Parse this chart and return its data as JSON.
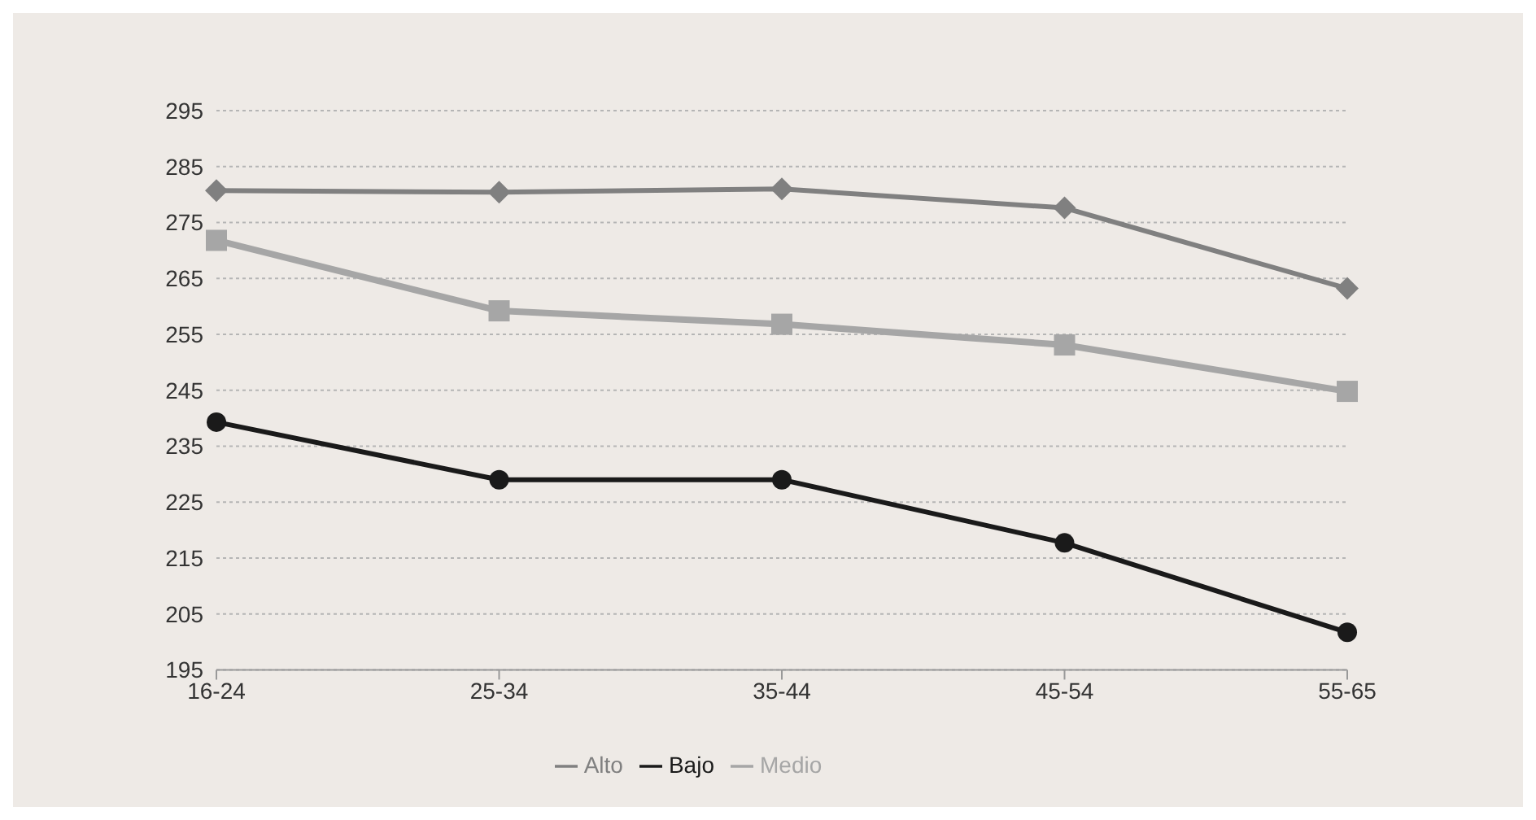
{
  "chart_data": {
    "type": "line",
    "categories": [
      "16-24",
      "25-34",
      "35-44",
      "45-54",
      "55-65"
    ],
    "series": [
      {
        "name": "Bajo",
        "color": "#1a1a1a",
        "marker": "circle",
        "values": [
          239.3,
          229,
          229,
          217.7,
          201.7
        ]
      },
      {
        "name": "Medio",
        "color": "#a6a6a6",
        "marker": "square",
        "values": [
          271.8,
          259.2,
          256.8,
          253.1,
          244.8
        ]
      },
      {
        "name": "Alto",
        "color": "#808080",
        "marker": "diamond",
        "values": [
          280.7,
          280.4,
          281,
          277.6,
          263.2
        ]
      }
    ],
    "ylim": [
      195,
      295
    ],
    "yticks": [
      195,
      205,
      215,
      225,
      235,
      245,
      255,
      265,
      275,
      285,
      295
    ],
    "grid": "y",
    "legend": "bottom"
  }
}
